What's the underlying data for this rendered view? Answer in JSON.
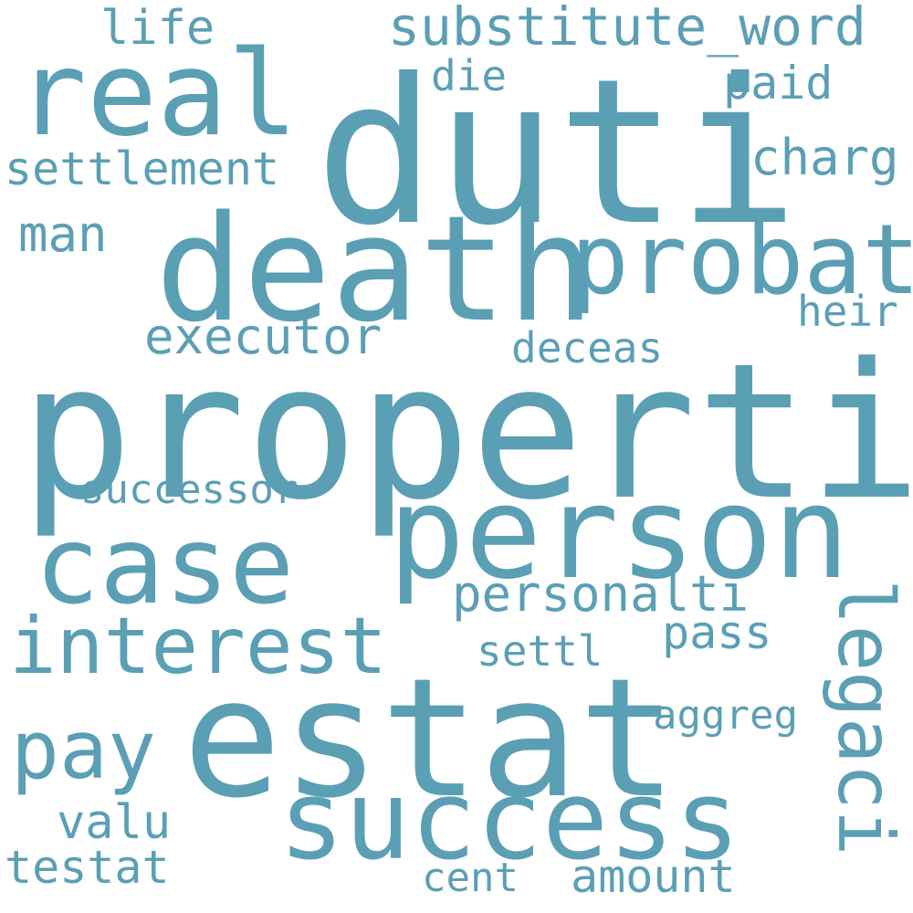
{
  "word_cloud": {
    "color": "#5b9fb5",
    "background": "#ffffff",
    "words": {
      "properti": "properti",
      "duti": "duti",
      "estat": "estat",
      "death": "death",
      "person": "person",
      "success": "success",
      "case": "case",
      "real": "real",
      "probat": "probat",
      "interest": "interest",
      "pay": "pay",
      "legaci": "legaci",
      "substitute_word": "substitute_word",
      "settlement": "settlement",
      "executor": "executor",
      "charg": "charg",
      "personalti": "personalti",
      "man": "man",
      "life": "life",
      "paid": "paid",
      "testat": "testat",
      "valu": "valu",
      "amount": "amount",
      "pass": "pass",
      "settl": "settl",
      "deceas": "deceas",
      "heir": "heir",
      "die": "die",
      "successor": "successor",
      "aggreg": "aggreg",
      "cent": "cent"
    }
  }
}
